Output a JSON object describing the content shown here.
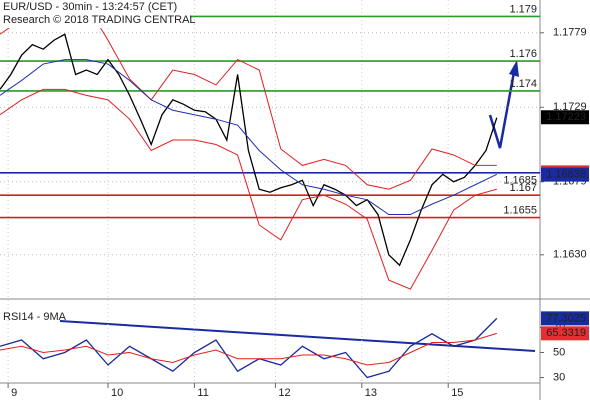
{
  "chart_data": [
    {
      "type": "line",
      "title": "EUR/USD - 30min - 13:24:57 (CET)",
      "subtitle": "Research © 2018 TRADING CENTRAL",
      "xlim": [
        0,
        100
      ],
      "xticks": [
        {
          "value": 1.5,
          "label": "9"
        },
        {
          "value": 20,
          "label": "10"
        },
        {
          "value": 36,
          "label": "11"
        },
        {
          "value": 51,
          "label": "12"
        },
        {
          "value": 67,
          "label": "13"
        },
        {
          "value": 83,
          "label": "15"
        }
      ],
      "ylim": [
        1.1601,
        1.1801
      ],
      "yticks": [
        1.1779,
        1.1729,
        1.1679,
        {
          "value": 1.163,
          "label": "1.1630"
        }
      ],
      "grid": true,
      "series": [
        {
          "color": "#000000",
          "x": [
            0,
            2,
            4,
            6,
            8,
            10,
            12,
            14,
            16,
            18,
            20,
            22,
            24,
            26,
            28,
            30,
            32,
            34,
            36,
            38,
            40,
            42,
            44,
            46,
            48,
            50,
            52,
            54,
            56,
            58,
            60,
            62,
            64,
            66,
            68,
            70,
            72,
            74,
            76,
            78,
            80,
            82,
            84,
            86,
            88,
            90,
            92
          ],
          "values": [
            1.1741,
            1.1751,
            1.1764,
            1.1771,
            1.1768,
            1.1774,
            1.1778,
            1.1751,
            1.1754,
            1.1751,
            1.1761,
            1.1751,
            1.1737,
            1.1721,
            1.1704,
            1.1724,
            1.1734,
            1.1731,
            1.1727,
            1.1726,
            1.1721,
            1.1707,
            1.1751,
            1.17,
            1.1674,
            1.1672,
            1.1675,
            1.1677,
            1.168,
            1.1663,
            1.1677,
            1.1674,
            1.167,
            1.1663,
            1.1667,
            1.1657,
            1.163,
            1.1623,
            1.164,
            1.166,
            1.1677,
            1.1684,
            1.1679,
            1.1682,
            1.169,
            1.17,
            1.1722
          ]
        },
        {
          "color": "#e02020",
          "x": [
            0,
            4,
            8,
            12,
            16,
            20,
            24,
            28,
            32,
            36,
            40,
            44,
            48,
            52,
            56,
            60,
            64,
            68,
            72,
            76,
            80,
            84,
            88,
            92
          ],
          "values": [
            1.1778,
            1.1788,
            1.1784,
            1.1794,
            1.1798,
            1.1774,
            1.1748,
            1.1734,
            1.1754,
            1.1751,
            1.1744,
            1.1761,
            1.1754,
            1.1701,
            1.169,
            1.1694,
            1.169,
            1.1677,
            1.1674,
            1.168,
            1.1701,
            1.1697,
            1.169,
            1.169
          ]
        },
        {
          "color": "#e02020",
          "x": [
            0,
            4,
            8,
            12,
            16,
            20,
            24,
            28,
            32,
            36,
            40,
            44,
            48,
            52,
            56,
            60,
            64,
            68,
            72,
            76,
            80,
            84,
            88,
            92
          ],
          "values": [
            1.1724,
            1.1734,
            1.1741,
            1.1741,
            1.1737,
            1.1734,
            1.1721,
            1.17,
            1.1707,
            1.1707,
            1.1704,
            1.1697,
            1.165,
            1.164,
            1.1667,
            1.167,
            1.1664,
            1.1654,
            1.1613,
            1.1607,
            1.1633,
            1.166,
            1.167,
            1.1674
          ]
        },
        {
          "color": "#2030b0",
          "x": [
            0,
            4,
            8,
            12,
            16,
            20,
            24,
            28,
            32,
            36,
            40,
            44,
            48,
            52,
            56,
            60,
            64,
            68,
            72,
            76,
            80,
            84,
            88,
            92
          ],
          "values": [
            1.1737,
            1.1747,
            1.1758,
            1.1761,
            1.1761,
            1.1758,
            1.1747,
            1.1734,
            1.1727,
            1.1724,
            1.1721,
            1.1717,
            1.17,
            1.1687,
            1.1677,
            1.1674,
            1.167,
            1.1667,
            1.1657,
            1.1657,
            1.1664,
            1.167,
            1.1677,
            1.1684
          ]
        }
      ],
      "levels": [
        {
          "value": 1.179,
          "color": "#2a9a2a"
        },
        {
          "value": 1.176,
          "color": "#2a9a2a"
        },
        {
          "value": 1.174,
          "color": "#2a9a2a"
        },
        {
          "value": 1.1685,
          "color": "#1a2aa0"
        },
        {
          "value": 1.167,
          "color": "#d42020"
        },
        {
          "value": 1.1655,
          "color": "#d42020"
        }
      ],
      "tags": [
        {
          "value": 1.17223,
          "color": "#000000"
        },
        {
          "value": 1.16853,
          "color": "#e03030"
        },
        {
          "value": 1.16838,
          "color": "#1a2aa0"
        }
      ]
    },
    {
      "type": "line",
      "title": "RSI14 - 9MA",
      "xlim": [
        0,
        100
      ],
      "ylim": [
        20,
        84
      ],
      "yticks": [
        30,
        50,
        70
      ],
      "series": [
        {
          "color": "#1a2aa0",
          "x": [
            0,
            4,
            8,
            12,
            16,
            20,
            24,
            28,
            32,
            36,
            40,
            44,
            48,
            52,
            56,
            60,
            64,
            68,
            72,
            76,
            80,
            84,
            88,
            92
          ],
          "values": [
            55,
            60,
            45,
            50,
            60,
            40,
            55,
            45,
            35,
            50,
            60,
            35,
            45,
            40,
            55,
            45,
            50,
            30,
            35,
            55,
            65,
            55,
            60,
            77.3
          ]
        },
        {
          "color": "#e02020",
          "x": [
            0,
            4,
            8,
            12,
            16,
            20,
            24,
            28,
            32,
            36,
            40,
            44,
            48,
            52,
            56,
            60,
            64,
            68,
            72,
            76,
            80,
            84,
            88,
            92
          ],
          "values": [
            52,
            55,
            50,
            52,
            55,
            48,
            50,
            45,
            42,
            48,
            52,
            45,
            45,
            45,
            48,
            48,
            45,
            40,
            42,
            50,
            58,
            58,
            60,
            65.3
          ]
        }
      ],
      "tags": [
        {
          "value": 77.3025,
          "color": "#1a2aa0"
        },
        {
          "value": 65.3319,
          "color": "#e03030"
        }
      ]
    }
  ]
}
